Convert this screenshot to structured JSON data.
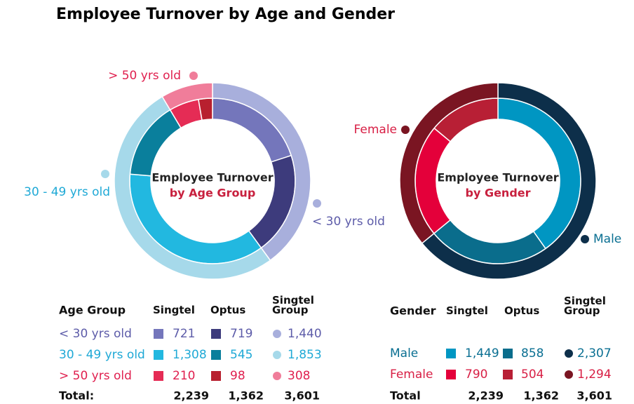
{
  "title": "Employee Turnover by Age and Gender",
  "chart_data": [
    {
      "type": "donut",
      "center_label": [
        "Employee Turnover",
        "by Age Group"
      ],
      "category_label": "Age Group",
      "categories": [
        "< 30 yrs old",
        "30 - 49 yrs old",
        "> 50 yrs old"
      ],
      "category_colors": [
        "#5d5ca9",
        "#1fa9d6",
        "#e0204f"
      ],
      "series": [
        {
          "name": "Singtel",
          "ring": "inner",
          "marker": "square",
          "colors": [
            "#7476bb",
            "#22b8e0",
            "#e52c55"
          ],
          "values": [
            721,
            1308,
            210
          ],
          "value_labels": [
            "721",
            "1,308",
            "210"
          ]
        },
        {
          "name": "Optus",
          "ring": "inner",
          "marker": "square",
          "colors": [
            "#3d3b7c",
            "#0a7f9c",
            "#b8202f"
          ],
          "values": [
            719,
            545,
            98
          ],
          "value_labels": [
            "719",
            "545",
            "98"
          ]
        },
        {
          "name": "Singtel Group",
          "ring": "outer",
          "marker": "dot",
          "colors": [
            "#a8afdc",
            "#a6d9ea",
            "#f07d9a"
          ],
          "values": [
            1440,
            1853,
            308
          ],
          "value_labels": [
            "1,440",
            "1,853",
            "308"
          ]
        }
      ],
      "total": {
        "label": "Total:",
        "values": [
          2239,
          1362,
          3601
        ],
        "value_labels": [
          "2,239",
          "1,362",
          "3,601"
        ]
      }
    },
    {
      "type": "donut",
      "center_label": [
        "Employee Turnover",
        "by Gender"
      ],
      "category_label": "Gender",
      "categories": [
        "Male",
        "Female"
      ],
      "category_colors": [
        "#0a6f92",
        "#d81f45"
      ],
      "series": [
        {
          "name": "Singtel",
          "ring": "inner",
          "marker": "square",
          "colors": [
            "#0096c2",
            "#e4003a"
          ],
          "values": [
            1449,
            790
          ],
          "value_labels": [
            "1,449",
            "790"
          ]
        },
        {
          "name": "Optus",
          "ring": "inner",
          "marker": "square",
          "colors": [
            "#0a6d8c",
            "#b81f35"
          ],
          "values": [
            858,
            504
          ],
          "value_labels": [
            "858",
            "504"
          ]
        },
        {
          "name": "Singtel Group",
          "ring": "outer",
          "marker": "dot",
          "colors": [
            "#0d2f4a",
            "#7a1522"
          ],
          "values": [
            2307,
            1294
          ],
          "value_labels": [
            "2,307",
            "1,294"
          ]
        }
      ],
      "total": {
        "label": "Total",
        "values": [
          2239,
          1362,
          3601
        ],
        "value_labels": [
          "2,239",
          "1,362",
          "3,601"
        ]
      }
    }
  ]
}
